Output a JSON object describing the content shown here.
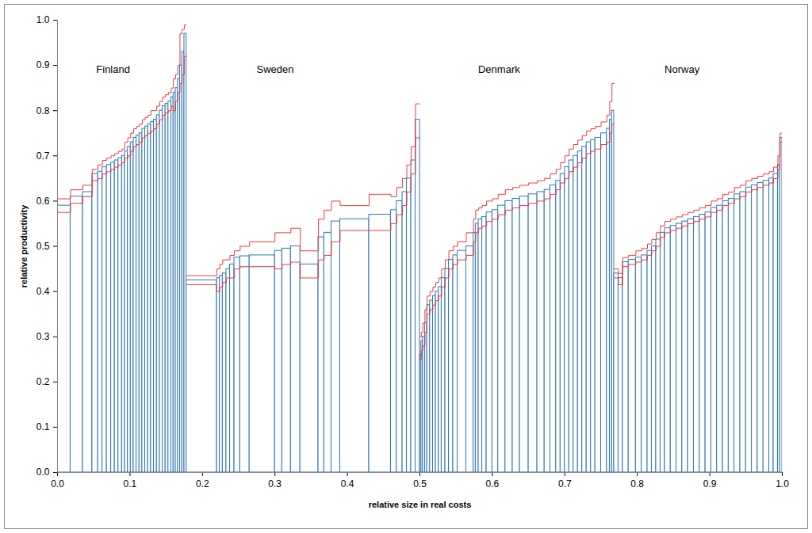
{
  "chart_data": {
    "type": "bar",
    "xlabel": "relative size in real costs",
    "ylabel": "relative productivity",
    "xlim": [
      0,
      1
    ],
    "ylim": [
      0,
      1
    ],
    "xticks": [
      {
        "value": 0,
        "label": "0.0"
      },
      {
        "value": 0.1,
        "label": "0.1"
      },
      {
        "value": 0.2,
        "label": "0.2"
      },
      {
        "value": 0.3,
        "label": "0.3"
      },
      {
        "value": 0.4,
        "label": "0.4"
      },
      {
        "value": 0.5,
        "label": "0.5"
      },
      {
        "value": 0.6,
        "label": "0.6"
      },
      {
        "value": 0.7,
        "label": "0.7"
      },
      {
        "value": 0.8,
        "label": "0.8"
      },
      {
        "value": 0.9,
        "label": "0.9"
      },
      {
        "value": 1,
        "label": "1.0"
      }
    ],
    "yticks": [
      {
        "value": 0,
        "label": "0.0"
      },
      {
        "value": 0.1,
        "label": "0.1"
      },
      {
        "value": 0.2,
        "label": "0.2"
      },
      {
        "value": 0.3,
        "label": "0.3"
      },
      {
        "value": 0.4,
        "label": "0.4"
      },
      {
        "value": 0.5,
        "label": "0.5"
      },
      {
        "value": 0.6,
        "label": "0.6"
      },
      {
        "value": 0.7,
        "label": "0.7"
      },
      {
        "value": 0.8,
        "label": "0.8"
      },
      {
        "value": 0.9,
        "label": "0.9"
      },
      {
        "value": 1,
        "label": "1.0"
      }
    ],
    "grid": false,
    "series": [
      {
        "name": "Finland",
        "color": "#2e75b6",
        "widths": [
          0.018,
          0.017,
          0.013,
          0.008,
          0.006,
          0.006,
          0.006,
          0.005,
          0.005,
          0.005,
          0.004,
          0.004,
          0.004,
          0.004,
          0.004,
          0.004,
          0.004,
          0.004,
          0.004,
          0.004,
          0.004,
          0.004,
          0.004,
          0.004,
          0.004,
          0.004,
          0.004,
          0.003,
          0.003,
          0.003,
          0.003,
          0.003,
          0.003,
          0.003
        ],
        "values": [
          0.59,
          0.61,
          0.62,
          0.66,
          0.665,
          0.675,
          0.68,
          0.685,
          0.69,
          0.695,
          0.7,
          0.71,
          0.72,
          0.73,
          0.74,
          0.745,
          0.75,
          0.76,
          0.765,
          0.77,
          0.775,
          0.78,
          0.79,
          0.8,
          0.81,
          0.815,
          0.82,
          0.83,
          0.84,
          0.85,
          0.87,
          0.9,
          0.93,
          0.97
        ],
        "upper": [
          0.605,
          0.625,
          0.635,
          0.67,
          0.68,
          0.69,
          0.695,
          0.7,
          0.705,
          0.71,
          0.715,
          0.73,
          0.74,
          0.75,
          0.76,
          0.765,
          0.77,
          0.78,
          0.785,
          0.79,
          0.8,
          0.8,
          0.81,
          0.82,
          0.83,
          0.835,
          0.84,
          0.85,
          0.87,
          0.88,
          0.9,
          0.97,
          0.98,
          0.99
        ],
        "lower": [
          0.575,
          0.595,
          0.61,
          0.645,
          0.65,
          0.66,
          0.665,
          0.67,
          0.675,
          0.68,
          0.685,
          0.695,
          0.7,
          0.71,
          0.72,
          0.725,
          0.73,
          0.74,
          0.745,
          0.75,
          0.755,
          0.76,
          0.77,
          0.78,
          0.79,
          0.795,
          0.8,
          0.81,
          0.8,
          0.82,
          0.84,
          0.86,
          0.88,
          0.92
        ]
      },
      {
        "name": "Sweden",
        "color": "#2e75b6",
        "widths": [
          0.042,
          0.004,
          0.004,
          0.005,
          0.005,
          0.006,
          0.008,
          0.013,
          0.035,
          0.01,
          0.012,
          0.013,
          0.025,
          0.008,
          0.01,
          0.012,
          0.04,
          0.03,
          0.008,
          0.008,
          0.006,
          0.006,
          0.006,
          0.006
        ],
        "values": [
          0.425,
          0.43,
          0.435,
          0.44,
          0.45,
          0.46,
          0.475,
          0.478,
          0.48,
          0.49,
          0.495,
          0.5,
          0.46,
          0.52,
          0.53,
          0.555,
          0.56,
          0.57,
          0.58,
          0.6,
          0.62,
          0.65,
          0.69,
          0.78
        ],
        "upper": [
          0.435,
          0.45,
          0.46,
          0.47,
          0.47,
          0.48,
          0.49,
          0.5,
          0.51,
          0.53,
          0.53,
          0.54,
          0.49,
          0.56,
          0.58,
          0.6,
          0.59,
          0.615,
          0.61,
          0.63,
          0.65,
          0.68,
          0.72,
          0.815
        ],
        "lower": [
          0.415,
          0.4,
          0.41,
          0.42,
          0.43,
          0.43,
          0.45,
          0.455,
          0.455,
          0.45,
          0.46,
          0.465,
          0.43,
          0.47,
          0.48,
          0.51,
          0.535,
          0.535,
          0.55,
          0.57,
          0.59,
          0.62,
          0.66,
          0.74
        ]
      },
      {
        "name": "Denmark",
        "color": "#2e75b6",
        "widths": [
          0.002,
          0.002,
          0.003,
          0.003,
          0.004,
          0.004,
          0.004,
          0.004,
          0.004,
          0.005,
          0.005,
          0.006,
          0.006,
          0.012,
          0.01,
          0.003,
          0.004,
          0.005,
          0.006,
          0.008,
          0.008,
          0.01,
          0.01,
          0.01,
          0.012,
          0.012,
          0.01,
          0.008,
          0.008,
          0.006,
          0.006,
          0.006,
          0.006,
          0.006,
          0.006,
          0.006,
          0.006,
          0.006,
          0.008,
          0.008,
          0.004,
          0.003,
          0.003
        ],
        "values": [
          0.26,
          0.29,
          0.3,
          0.33,
          0.37,
          0.38,
          0.39,
          0.4,
          0.41,
          0.43,
          0.45,
          0.47,
          0.48,
          0.49,
          0.5,
          0.53,
          0.55,
          0.56,
          0.565,
          0.575,
          0.58,
          0.59,
          0.6,
          0.605,
          0.61,
          0.615,
          0.62,
          0.625,
          0.635,
          0.645,
          0.66,
          0.675,
          0.69,
          0.7,
          0.71,
          0.72,
          0.73,
          0.735,
          0.74,
          0.75,
          0.76,
          0.78,
          0.8
        ],
        "upper": [
          0.3,
          0.31,
          0.33,
          0.36,
          0.39,
          0.4,
          0.41,
          0.42,
          0.43,
          0.45,
          0.47,
          0.49,
          0.5,
          0.51,
          0.53,
          0.56,
          0.58,
          0.585,
          0.59,
          0.6,
          0.605,
          0.615,
          0.625,
          0.63,
          0.635,
          0.64,
          0.645,
          0.65,
          0.66,
          0.67,
          0.685,
          0.7,
          0.715,
          0.725,
          0.735,
          0.745,
          0.755,
          0.76,
          0.765,
          0.775,
          0.79,
          0.82,
          0.86
        ],
        "lower": [
          0.25,
          0.27,
          0.28,
          0.31,
          0.35,
          0.36,
          0.37,
          0.38,
          0.39,
          0.41,
          0.43,
          0.45,
          0.46,
          0.47,
          0.48,
          0.51,
          0.53,
          0.54,
          0.545,
          0.555,
          0.56,
          0.57,
          0.58,
          0.585,
          0.59,
          0.595,
          0.6,
          0.605,
          0.615,
          0.625,
          0.64,
          0.65,
          0.665,
          0.675,
          0.685,
          0.695,
          0.705,
          0.71,
          0.715,
          0.725,
          0.73,
          0.75,
          0.77
        ]
      },
      {
        "name": "Norway",
        "color": "#2e75b6",
        "widths": [
          0.006,
          0.006,
          0.008,
          0.01,
          0.008,
          0.008,
          0.006,
          0.006,
          0.006,
          0.006,
          0.008,
          0.008,
          0.008,
          0.008,
          0.008,
          0.008,
          0.008,
          0.008,
          0.008,
          0.008,
          0.008,
          0.008,
          0.008,
          0.008,
          0.008,
          0.008,
          0.008,
          0.008,
          0.006,
          0.006,
          0.003,
          0.003
        ],
        "values": [
          0.44,
          0.43,
          0.465,
          0.47,
          0.475,
          0.48,
          0.49,
          0.5,
          0.515,
          0.53,
          0.54,
          0.545,
          0.55,
          0.555,
          0.56,
          0.565,
          0.57,
          0.575,
          0.585,
          0.59,
          0.6,
          0.605,
          0.615,
          0.62,
          0.63,
          0.635,
          0.64,
          0.645,
          0.65,
          0.66,
          0.68,
          0.74
        ],
        "upper": [
          0.45,
          0.44,
          0.475,
          0.48,
          0.49,
          0.495,
          0.505,
          0.515,
          0.53,
          0.545,
          0.555,
          0.56,
          0.565,
          0.57,
          0.575,
          0.58,
          0.585,
          0.59,
          0.6,
          0.605,
          0.615,
          0.62,
          0.63,
          0.635,
          0.645,
          0.65,
          0.655,
          0.66,
          0.665,
          0.675,
          0.7,
          0.75
        ],
        "lower": [
          0.43,
          0.415,
          0.455,
          0.46,
          0.465,
          0.47,
          0.48,
          0.49,
          0.5,
          0.52,
          0.53,
          0.535,
          0.54,
          0.545,
          0.55,
          0.555,
          0.56,
          0.565,
          0.575,
          0.58,
          0.59,
          0.595,
          0.605,
          0.61,
          0.62,
          0.625,
          0.63,
          0.635,
          0.64,
          0.65,
          0.67,
          0.73
        ]
      }
    ]
  }
}
